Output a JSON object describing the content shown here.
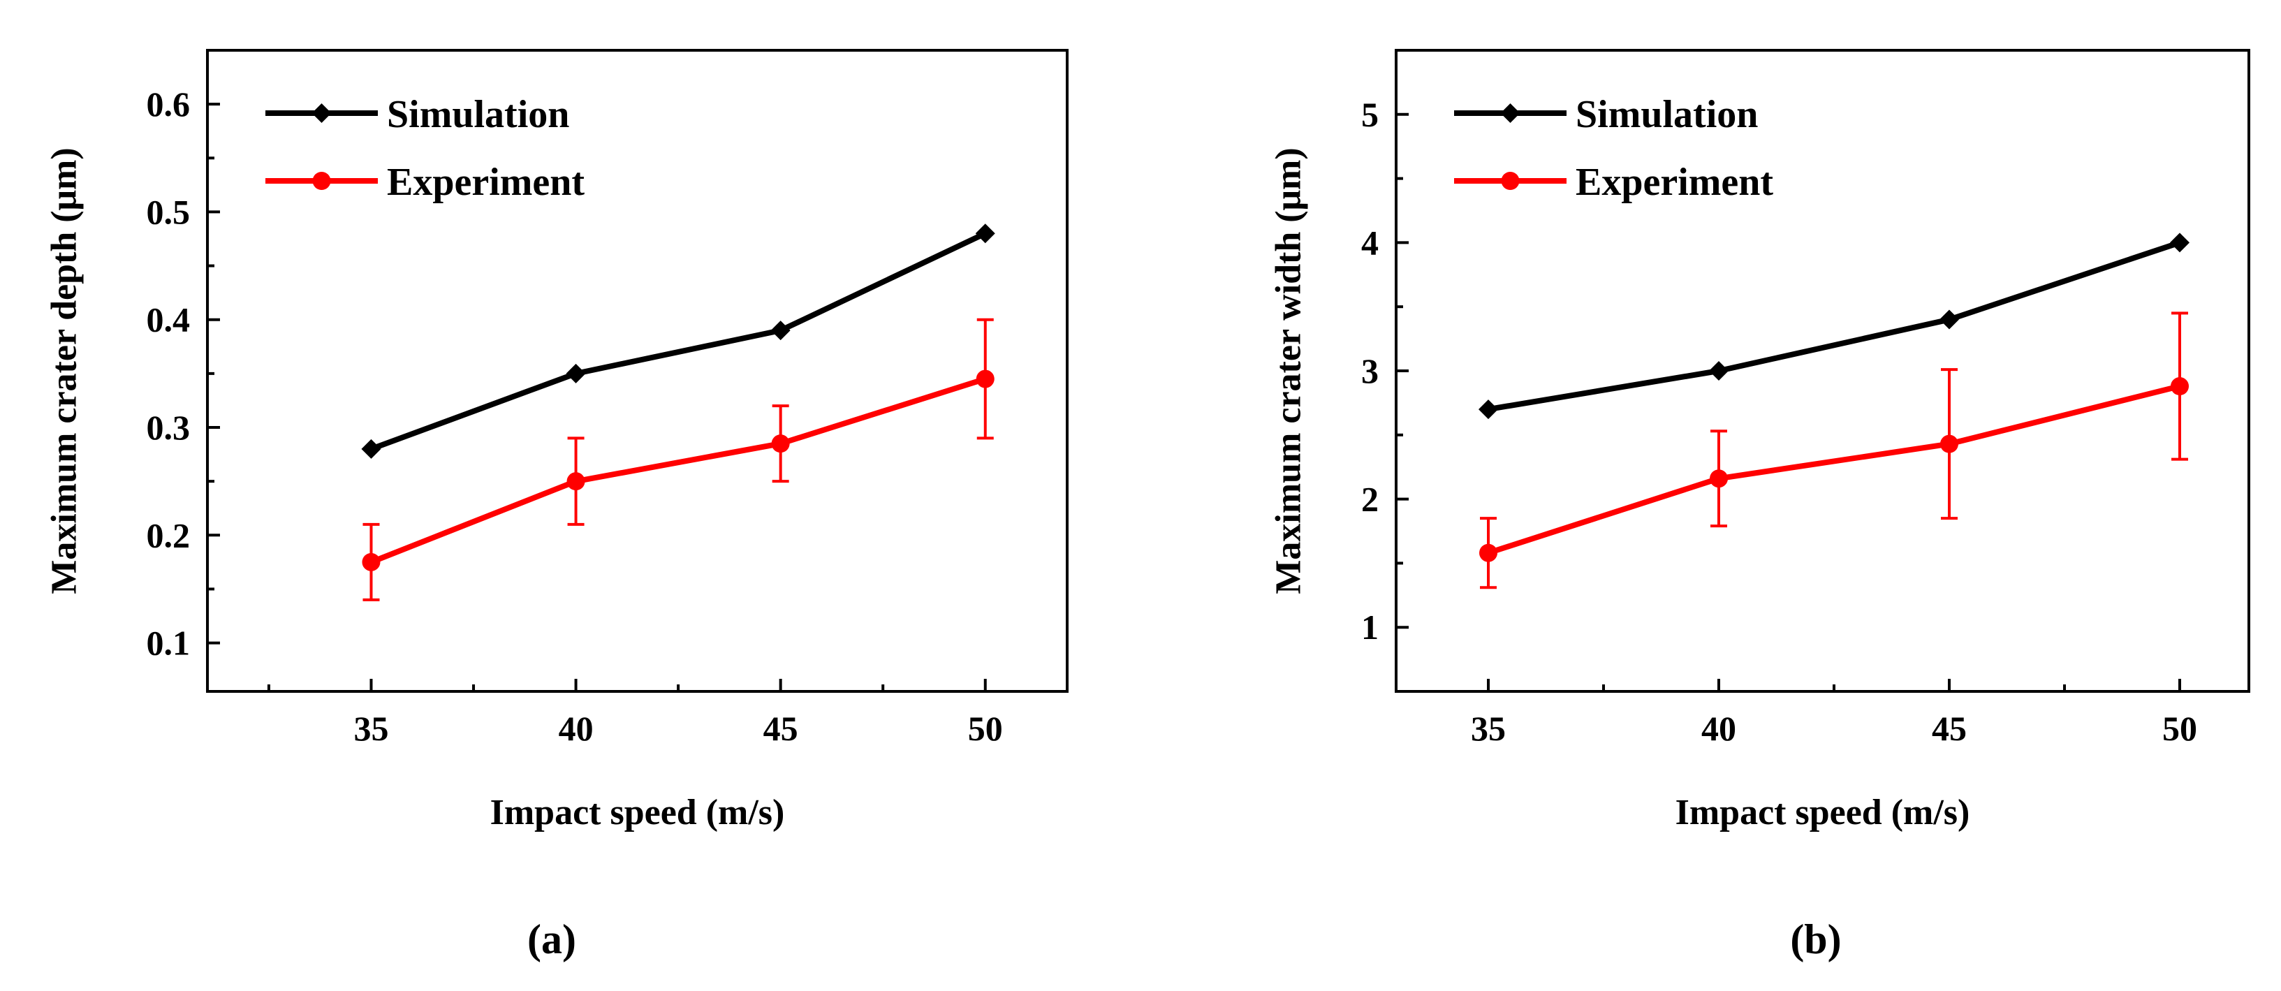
{
  "chart_data": [
    {
      "type": "line",
      "panel_label": "(a)",
      "title": "",
      "xlabel": "Impact speed (m/s)",
      "ylabel": "Maximum crater depth (μm)",
      "x": [
        35,
        40,
        45,
        50
      ],
      "xlim": [
        31,
        52
      ],
      "ylim": [
        0.055,
        0.65
      ],
      "xticks": [
        35,
        40,
        45,
        50
      ],
      "yticks": [
        0.1,
        0.2,
        0.3,
        0.4,
        0.5,
        0.6
      ],
      "ytick_labels": [
        "0.1",
        "0.2",
        "0.3",
        "0.4",
        "0.5",
        "0.6"
      ],
      "grid": false,
      "legend_position": "top-left",
      "series": [
        {
          "name": "Simulation",
          "color": "#000000",
          "marker": "diamond",
          "values": [
            0.28,
            0.35,
            0.39,
            0.48
          ]
        },
        {
          "name": "Experiment",
          "color": "#ff0000",
          "marker": "circle",
          "values": [
            0.175,
            0.25,
            0.285,
            0.345
          ],
          "error": [
            0.035,
            0.04,
            0.035,
            0.055
          ]
        }
      ]
    },
    {
      "type": "line",
      "panel_label": "(b)",
      "title": "",
      "xlabel": "Impact speed (m/s)",
      "ylabel": "Maximum crater width (μm)",
      "x": [
        35,
        40,
        45,
        50
      ],
      "xlim": [
        33,
        51.5
      ],
      "ylim": [
        0.5,
        5.5
      ],
      "xticks": [
        35,
        40,
        45,
        50
      ],
      "yticks": [
        1,
        2,
        3,
        4,
        5
      ],
      "ytick_labels": [
        "1",
        "2",
        "3",
        "4",
        "5"
      ],
      "grid": false,
      "legend_position": "top-left",
      "series": [
        {
          "name": "Simulation",
          "color": "#000000",
          "marker": "diamond",
          "values": [
            2.7,
            3.0,
            3.4,
            4.0
          ]
        },
        {
          "name": "Experiment",
          "color": "#ff0000",
          "marker": "circle",
          "values": [
            1.58,
            2.16,
            2.43,
            2.88
          ],
          "error": [
            0.27,
            0.37,
            0.58,
            0.57
          ]
        }
      ]
    }
  ]
}
